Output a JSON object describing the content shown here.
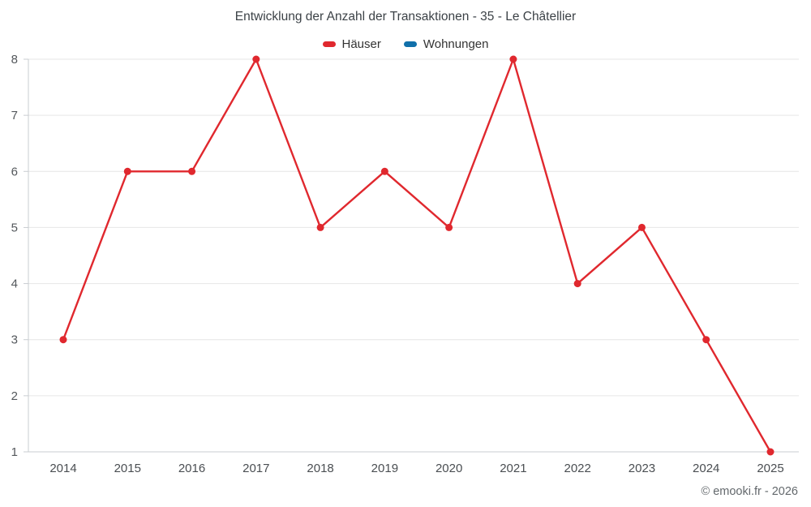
{
  "chart_data": {
    "type": "line",
    "title": "Entwicklung der Anzahl der Transaktionen - 35 - Le Châtellier",
    "categories": [
      "2014",
      "2015",
      "2016",
      "2017",
      "2018",
      "2019",
      "2020",
      "2021",
      "2022",
      "2023",
      "2024",
      "2025"
    ],
    "series": [
      {
        "name": "Häuser",
        "color": "#e0282e",
        "values": [
          3,
          6,
          6,
          8,
          5,
          6,
          5,
          8,
          4,
          5,
          3,
          1
        ]
      },
      {
        "name": "Wohnungen",
        "color": "#1170aa",
        "values": []
      }
    ],
    "xlabel": "",
    "ylabel": "",
    "ylim": [
      1,
      8
    ],
    "yticks": [
      1,
      2,
      3,
      4,
      5,
      6,
      7,
      8
    ],
    "grid": true,
    "legend_position": "top",
    "colors": {
      "gridline": "#e6e6e6",
      "axis": "#c9cdd1",
      "point_fill": "#e0282e"
    }
  },
  "footer": {
    "copyright": "© emooki.fr - 2026"
  }
}
